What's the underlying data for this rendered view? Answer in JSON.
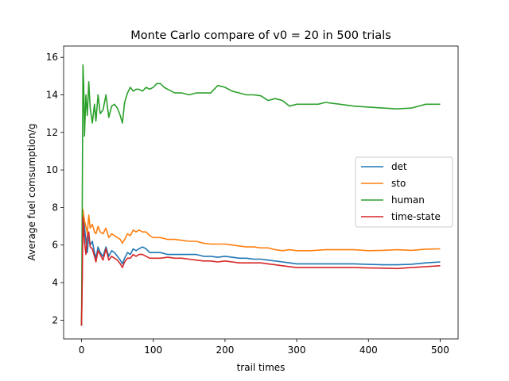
{
  "chart_data": {
    "type": "line",
    "title": "Monte Carlo compare of v0 = 20 in 500 trials",
    "xlabel": "trail times",
    "ylabel": "Average fuel comsumption/g",
    "xlim": [
      -25,
      525
    ],
    "ylim": [
      1.0,
      16.6
    ],
    "x_ticks": [
      0,
      100,
      200,
      300,
      400,
      500
    ],
    "y_ticks": [
      2,
      4,
      6,
      8,
      10,
      12,
      14,
      16
    ],
    "grid": false,
    "legend_position": "center-right",
    "series": [
      {
        "name": "det",
        "color": "#1f77b4",
        "points": [
          [
            0,
            1.7
          ],
          [
            1,
            4.5
          ],
          [
            2,
            7.6
          ],
          [
            4,
            7.0
          ],
          [
            6,
            6.2
          ],
          [
            8,
            5.6
          ],
          [
            10,
            6.5
          ],
          [
            12,
            6.0
          ],
          [
            15,
            6.2
          ],
          [
            18,
            5.6
          ],
          [
            20,
            5.3
          ],
          [
            23,
            5.9
          ],
          [
            26,
            5.6
          ],
          [
            30,
            5.4
          ],
          [
            34,
            5.9
          ],
          [
            38,
            5.4
          ],
          [
            42,
            5.7
          ],
          [
            46,
            5.6
          ],
          [
            50,
            5.4
          ],
          [
            54,
            5.2
          ],
          [
            57,
            5.0
          ],
          [
            60,
            5.3
          ],
          [
            64,
            5.6
          ],
          [
            68,
            5.5
          ],
          [
            72,
            5.8
          ],
          [
            76,
            5.7
          ],
          [
            80,
            5.8
          ],
          [
            85,
            5.9
          ],
          [
            90,
            5.8
          ],
          [
            95,
            5.6
          ],
          [
            100,
            5.6
          ],
          [
            110,
            5.6
          ],
          [
            120,
            5.5
          ],
          [
            130,
            5.5
          ],
          [
            140,
            5.5
          ],
          [
            150,
            5.5
          ],
          [
            160,
            5.5
          ],
          [
            170,
            5.4
          ],
          [
            180,
            5.4
          ],
          [
            190,
            5.35
          ],
          [
            200,
            5.4
          ],
          [
            210,
            5.35
          ],
          [
            220,
            5.3
          ],
          [
            230,
            5.3
          ],
          [
            240,
            5.25
          ],
          [
            250,
            5.25
          ],
          [
            260,
            5.2
          ],
          [
            270,
            5.15
          ],
          [
            280,
            5.1
          ],
          [
            290,
            5.05
          ],
          [
            300,
            5.0
          ],
          [
            320,
            5.0
          ],
          [
            340,
            5.0
          ],
          [
            360,
            5.0
          ],
          [
            380,
            5.0
          ],
          [
            400,
            4.97
          ],
          [
            420,
            4.95
          ],
          [
            440,
            4.95
          ],
          [
            460,
            4.98
          ],
          [
            480,
            5.05
          ],
          [
            500,
            5.1
          ]
        ]
      },
      {
        "name": "sto",
        "color": "#ff7f0e",
        "points": [
          [
            0,
            1.7
          ],
          [
            1,
            5.0
          ],
          [
            2,
            7.9
          ],
          [
            4,
            7.3
          ],
          [
            6,
            7.0
          ],
          [
            8,
            6.6
          ],
          [
            10,
            7.6
          ],
          [
            12,
            6.9
          ],
          [
            15,
            7.1
          ],
          [
            18,
            6.7
          ],
          [
            20,
            6.6
          ],
          [
            23,
            7.0
          ],
          [
            26,
            6.7
          ],
          [
            30,
            6.6
          ],
          [
            34,
            6.9
          ],
          [
            38,
            6.4
          ],
          [
            42,
            6.6
          ],
          [
            46,
            6.5
          ],
          [
            50,
            6.4
          ],
          [
            54,
            6.3
          ],
          [
            57,
            6.1
          ],
          [
            60,
            6.3
          ],
          [
            64,
            6.6
          ],
          [
            68,
            6.5
          ],
          [
            72,
            6.8
          ],
          [
            76,
            6.7
          ],
          [
            80,
            6.8
          ],
          [
            85,
            6.7
          ],
          [
            90,
            6.7
          ],
          [
            95,
            6.5
          ],
          [
            100,
            6.4
          ],
          [
            110,
            6.4
          ],
          [
            120,
            6.3
          ],
          [
            130,
            6.3
          ],
          [
            140,
            6.25
          ],
          [
            150,
            6.2
          ],
          [
            160,
            6.2
          ],
          [
            170,
            6.1
          ],
          [
            180,
            6.05
          ],
          [
            190,
            6.05
          ],
          [
            200,
            6.05
          ],
          [
            210,
            6.0
          ],
          [
            220,
            5.95
          ],
          [
            230,
            5.9
          ],
          [
            240,
            5.9
          ],
          [
            250,
            5.85
          ],
          [
            260,
            5.85
          ],
          [
            270,
            5.75
          ],
          [
            280,
            5.7
          ],
          [
            290,
            5.75
          ],
          [
            300,
            5.7
          ],
          [
            320,
            5.7
          ],
          [
            340,
            5.75
          ],
          [
            360,
            5.75
          ],
          [
            380,
            5.75
          ],
          [
            400,
            5.7
          ],
          [
            420,
            5.72
          ],
          [
            440,
            5.75
          ],
          [
            460,
            5.72
          ],
          [
            480,
            5.78
          ],
          [
            500,
            5.8
          ]
        ]
      },
      {
        "name": "human",
        "color": "#2ca02c",
        "points": [
          [
            0,
            1.7
          ],
          [
            1,
            8.0
          ],
          [
            2,
            15.6
          ],
          [
            3,
            14.5
          ],
          [
            4,
            11.8
          ],
          [
            6,
            14.0
          ],
          [
            8,
            12.9
          ],
          [
            10,
            14.7
          ],
          [
            12,
            13.3
          ],
          [
            15,
            12.5
          ],
          [
            18,
            13.5
          ],
          [
            20,
            12.6
          ],
          [
            23,
            14.0
          ],
          [
            26,
            13.0
          ],
          [
            30,
            13.2
          ],
          [
            34,
            14.0
          ],
          [
            38,
            12.8
          ],
          [
            42,
            13.4
          ],
          [
            46,
            13.5
          ],
          [
            50,
            13.3
          ],
          [
            54,
            12.9
          ],
          [
            57,
            12.5
          ],
          [
            60,
            13.6
          ],
          [
            64,
            14.1
          ],
          [
            68,
            14.4
          ],
          [
            72,
            14.2
          ],
          [
            76,
            14.3
          ],
          [
            80,
            14.3
          ],
          [
            85,
            14.2
          ],
          [
            90,
            14.4
          ],
          [
            95,
            14.3
          ],
          [
            100,
            14.4
          ],
          [
            105,
            14.6
          ],
          [
            110,
            14.6
          ],
          [
            115,
            14.4
          ],
          [
            120,
            14.3
          ],
          [
            130,
            14.1
          ],
          [
            140,
            14.1
          ],
          [
            150,
            14.0
          ],
          [
            160,
            14.1
          ],
          [
            170,
            14.1
          ],
          [
            180,
            14.1
          ],
          [
            190,
            14.5
          ],
          [
            200,
            14.4
          ],
          [
            210,
            14.2
          ],
          [
            220,
            14.1
          ],
          [
            230,
            14.0
          ],
          [
            240,
            14.0
          ],
          [
            250,
            13.95
          ],
          [
            260,
            13.7
          ],
          [
            270,
            13.8
          ],
          [
            280,
            13.7
          ],
          [
            290,
            13.4
          ],
          [
            300,
            13.5
          ],
          [
            310,
            13.5
          ],
          [
            320,
            13.5
          ],
          [
            330,
            13.5
          ],
          [
            340,
            13.6
          ],
          [
            360,
            13.5
          ],
          [
            380,
            13.4
          ],
          [
            400,
            13.35
          ],
          [
            420,
            13.3
          ],
          [
            440,
            13.25
          ],
          [
            460,
            13.3
          ],
          [
            480,
            13.5
          ],
          [
            500,
            13.5
          ]
        ]
      },
      {
        "name": "time-state",
        "color": "#d62728",
        "points": [
          [
            0,
            1.7
          ],
          [
            1,
            4.0
          ],
          [
            2,
            7.5
          ],
          [
            4,
            6.2
          ],
          [
            6,
            5.5
          ],
          [
            8,
            6.5
          ],
          [
            10,
            6.7
          ],
          [
            12,
            5.9
          ],
          [
            15,
            5.8
          ],
          [
            18,
            5.4
          ],
          [
            20,
            5.1
          ],
          [
            23,
            5.7
          ],
          [
            26,
            5.5
          ],
          [
            30,
            5.2
          ],
          [
            34,
            5.8
          ],
          [
            38,
            5.2
          ],
          [
            42,
            5.4
          ],
          [
            46,
            5.3
          ],
          [
            50,
            5.2
          ],
          [
            54,
            5.0
          ],
          [
            57,
            4.8
          ],
          [
            60,
            5.1
          ],
          [
            64,
            5.3
          ],
          [
            68,
            5.3
          ],
          [
            72,
            5.5
          ],
          [
            76,
            5.4
          ],
          [
            80,
            5.5
          ],
          [
            85,
            5.5
          ],
          [
            90,
            5.4
          ],
          [
            95,
            5.3
          ],
          [
            100,
            5.3
          ],
          [
            110,
            5.3
          ],
          [
            120,
            5.35
          ],
          [
            130,
            5.3
          ],
          [
            140,
            5.3
          ],
          [
            150,
            5.25
          ],
          [
            160,
            5.2
          ],
          [
            170,
            5.15
          ],
          [
            180,
            5.15
          ],
          [
            190,
            5.1
          ],
          [
            200,
            5.15
          ],
          [
            210,
            5.1
          ],
          [
            220,
            5.05
          ],
          [
            230,
            5.05
          ],
          [
            240,
            5.05
          ],
          [
            250,
            5.05
          ],
          [
            260,
            5.0
          ],
          [
            270,
            4.95
          ],
          [
            280,
            4.9
          ],
          [
            290,
            4.85
          ],
          [
            300,
            4.8
          ],
          [
            320,
            4.8
          ],
          [
            340,
            4.8
          ],
          [
            360,
            4.8
          ],
          [
            380,
            4.8
          ],
          [
            400,
            4.78
          ],
          [
            420,
            4.77
          ],
          [
            440,
            4.75
          ],
          [
            460,
            4.8
          ],
          [
            480,
            4.85
          ],
          [
            500,
            4.9
          ]
        ]
      }
    ]
  }
}
